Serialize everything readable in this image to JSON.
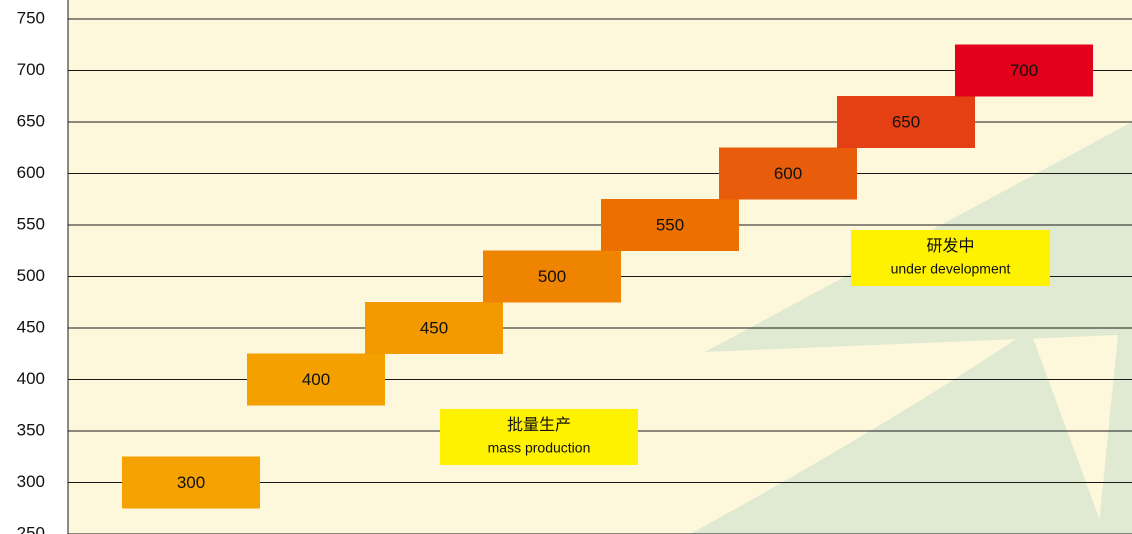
{
  "chart_data": {
    "type": "floating-bar",
    "categories": [
      null,
      null,
      null,
      null,
      null,
      null,
      null,
      null
    ],
    "values": [
      300,
      400,
      450,
      500,
      550,
      600,
      650,
      700
    ],
    "colors": [
      "#f5a200",
      "#f4a100",
      "#f29a00",
      "#ef8400",
      "#ec7000",
      "#e85d0c",
      "#e53f14",
      "#e2001a"
    ],
    "ylim": [
      250,
      750
    ],
    "yticks": [
      250,
      300,
      350,
      400,
      450,
      500,
      550,
      600,
      650,
      700,
      750
    ],
    "grid": true,
    "annotations": [
      {
        "text": "批量生产",
        "subtext": "mass production"
      },
      {
        "text": "研发中",
        "subtext": "under development"
      }
    ]
  }
}
